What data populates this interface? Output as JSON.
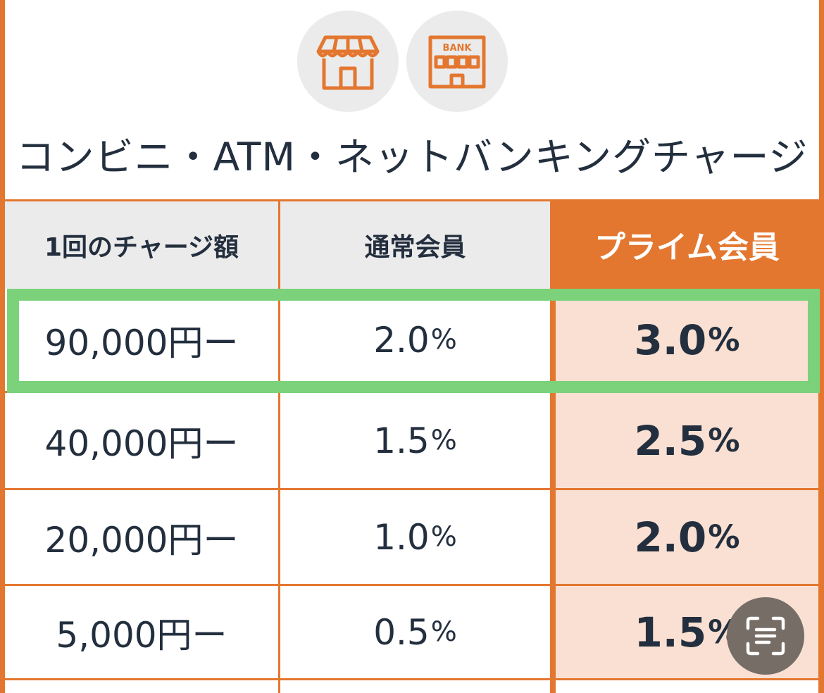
{
  "title": "コンビニ・ATM・ネットバンキングチャージ",
  "icons": {
    "store": "store-icon",
    "bank": "bank-icon",
    "bank_label": "BANK",
    "scan": "scan-text-icon"
  },
  "colors": {
    "accent": "#e37730",
    "prime_fill": "#f9e0d2",
    "header_fill": "#ebebeb",
    "highlight": "#7bd27b",
    "text": "#232f3e"
  },
  "table": {
    "headers": [
      "1回のチャージ額",
      "通常会員",
      "プライム会員"
    ],
    "rows": [
      {
        "amount": "90,000円ー",
        "regular": "2.0",
        "prime": "3.0",
        "highlighted": true
      },
      {
        "amount": "40,000円ー",
        "regular": "1.5",
        "prime": "2.5"
      },
      {
        "amount": "20,000円ー",
        "regular": "1.0",
        "prime": "2.0"
      },
      {
        "amount": "5,000円ー",
        "regular": "0.5",
        "prime": "1.5"
      }
    ],
    "percent_sign": "%"
  }
}
